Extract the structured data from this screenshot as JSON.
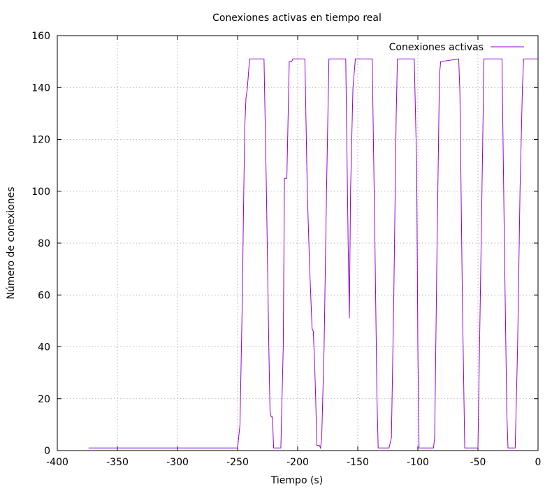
{
  "chart_data": {
    "type": "line",
    "title": "Conexiones activas en tiempo real",
    "xlabel": "Tiempo (s)",
    "ylabel": "Número de conexiones",
    "xlim": [
      -400,
      0
    ],
    "ylim": [
      0,
      160
    ],
    "xticks": [
      -400,
      -350,
      -300,
      -250,
      -200,
      -150,
      -100,
      -50,
      0
    ],
    "yticks": [
      0,
      20,
      40,
      60,
      80,
      100,
      120,
      140,
      160
    ],
    "grid": true,
    "legend": "top-right",
    "series": [
      {
        "name": "Conexiones activas",
        "color": "#9400d3",
        "points": [
          [
            -374,
            1
          ],
          [
            -250,
            1
          ],
          [
            -248,
            10
          ],
          [
            -246,
            60
          ],
          [
            -245,
            95
          ],
          [
            -244,
            125
          ],
          [
            -243,
            136
          ],
          [
            -242,
            139
          ],
          [
            -240,
            151
          ],
          [
            -228,
            151
          ],
          [
            -226,
            100
          ],
          [
            -224,
            40
          ],
          [
            -223,
            15
          ],
          [
            -222,
            13
          ],
          [
            -221,
            13
          ],
          [
            -220,
            1
          ],
          [
            -214,
            1
          ],
          [
            -212,
            40
          ],
          [
            -211,
            105
          ],
          [
            -209,
            105
          ],
          [
            -207,
            150
          ],
          [
            -205,
            150
          ],
          [
            -204,
            151
          ],
          [
            -194,
            151
          ],
          [
            -192,
            100
          ],
          [
            -190,
            70
          ],
          [
            -188,
            47
          ],
          [
            -187,
            46
          ],
          [
            -186,
            35
          ],
          [
            -185,
            20
          ],
          [
            -184,
            2
          ],
          [
            -182,
            2
          ],
          [
            -181,
            1
          ],
          [
            -180,
            5
          ],
          [
            -178,
            40
          ],
          [
            -176,
            100
          ],
          [
            -174,
            151
          ],
          [
            -160,
            151
          ],
          [
            -158,
            80
          ],
          [
            -157,
            51
          ],
          [
            -156,
            100
          ],
          [
            -154,
            140
          ],
          [
            -152,
            151
          ],
          [
            -138,
            151
          ],
          [
            -136,
            90
          ],
          [
            -134,
            20
          ],
          [
            -133,
            1
          ],
          [
            -124,
            1
          ],
          [
            -122,
            5
          ],
          [
            -120,
            60
          ],
          [
            -118,
            130
          ],
          [
            -117,
            151
          ],
          [
            -103,
            151
          ],
          [
            -101,
            110
          ],
          [
            -100,
            40
          ],
          [
            -99,
            1
          ],
          [
            -87,
            1
          ],
          [
            -86,
            5
          ],
          [
            -84,
            80
          ],
          [
            -82,
            145
          ],
          [
            -81,
            150
          ],
          [
            -66,
            151
          ],
          [
            -65,
            138
          ],
          [
            -63,
            60
          ],
          [
            -61,
            1
          ],
          [
            -50,
            1
          ],
          [
            -48,
            60
          ],
          [
            -46,
            120
          ],
          [
            -45,
            151
          ],
          [
            -30,
            151
          ],
          [
            -28,
            80
          ],
          [
            -26,
            15
          ],
          [
            -25,
            1
          ],
          [
            -19,
            1
          ],
          [
            -17,
            40
          ],
          [
            -15,
            100
          ],
          [
            -13,
            140
          ],
          [
            -12,
            151
          ],
          [
            0,
            151
          ]
        ]
      }
    ]
  }
}
